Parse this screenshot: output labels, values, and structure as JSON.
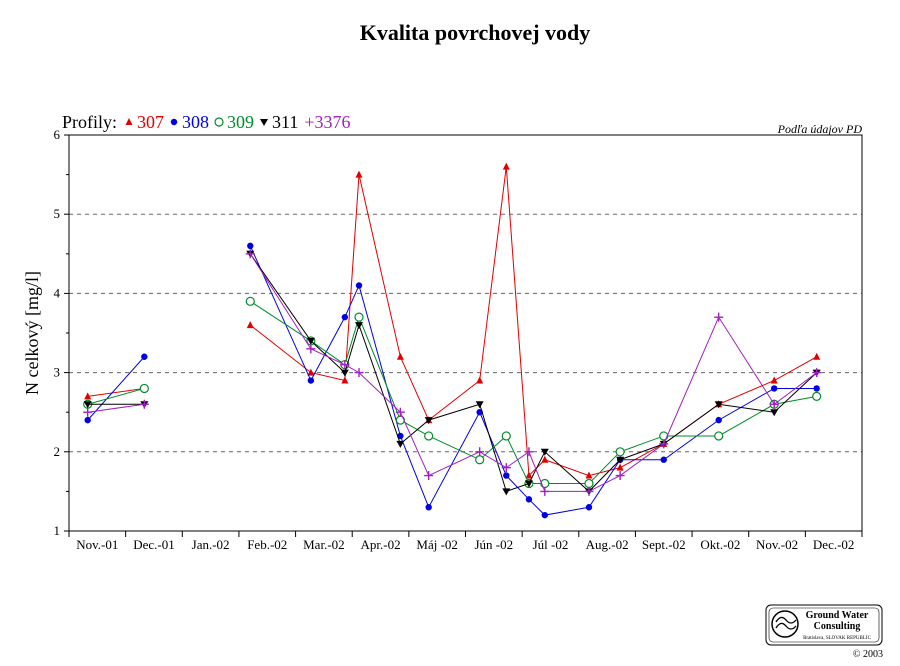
{
  "chart_data": {
    "type": "line",
    "title": "Kvalita povrchovej vody",
    "ylabel": "N celkový [mg/l]",
    "xlabel": "",
    "note": "Podľa údajov PD",
    "legend_prefix": "Profily:",
    "legend_position": "top-left",
    "ylim": [
      1,
      6
    ],
    "yticks": [
      1,
      2,
      3,
      4,
      5,
      6
    ],
    "grid": "horizontal-dashed",
    "categories": [
      "Nov.-01",
      "Dec.-01",
      "Jan.-02",
      "Feb.-02",
      "Mar.-02",
      "Apr.-02",
      "Máj -02",
      "Jún -02",
      "Júl -02",
      "Aug.-02",
      "Sept.-02",
      "Okt.-02",
      "Nov.-02",
      "Dec.-02"
    ],
    "series": [
      {
        "name": "307",
        "color": "#e00000",
        "marker": "triangle-up",
        "points": [
          [
            0.33,
            2.7
          ],
          [
            1.33,
            2.8
          ],
          [
            3.2,
            3.6
          ],
          [
            4.27,
            3.0
          ],
          [
            4.87,
            2.9
          ],
          [
            5.12,
            5.5
          ],
          [
            5.85,
            3.2
          ],
          [
            6.35,
            2.4
          ],
          [
            7.25,
            2.9
          ],
          [
            7.72,
            5.6
          ],
          [
            8.12,
            1.7
          ],
          [
            8.4,
            1.9
          ],
          [
            9.18,
            1.7
          ],
          [
            9.73,
            1.8
          ],
          [
            10.5,
            2.1
          ],
          [
            11.47,
            2.6
          ],
          [
            12.45,
            2.9
          ],
          [
            13.2,
            3.2
          ]
        ]
      },
      {
        "name": "308",
        "color": "#0000e0",
        "marker": "circle",
        "points": [
          [
            0.33,
            2.4
          ],
          [
            1.33,
            3.2
          ],
          [
            3.2,
            4.6
          ],
          [
            4.27,
            2.9
          ],
          [
            4.87,
            3.7
          ],
          [
            5.12,
            4.1
          ],
          [
            5.85,
            2.2
          ],
          [
            6.35,
            1.3
          ],
          [
            7.25,
            2.5
          ],
          [
            7.72,
            1.7
          ],
          [
            8.12,
            1.4
          ],
          [
            8.4,
            1.2
          ],
          [
            9.18,
            1.3
          ],
          [
            9.73,
            1.9
          ],
          [
            10.5,
            1.9
          ],
          [
            11.47,
            2.4
          ],
          [
            12.45,
            2.8
          ],
          [
            13.2,
            2.8
          ]
        ]
      },
      {
        "name": "309",
        "color": "#008c2a",
        "marker": "circle-open",
        "points": [
          [
            0.33,
            2.6
          ],
          [
            1.33,
            2.8
          ],
          [
            3.2,
            3.9
          ],
          [
            4.27,
            3.4
          ],
          [
            4.87,
            3.1
          ],
          [
            5.12,
            3.7
          ],
          [
            5.85,
            2.4
          ],
          [
            6.35,
            2.2
          ],
          [
            7.25,
            1.9
          ],
          [
            7.72,
            2.2
          ],
          [
            8.12,
            1.6
          ],
          [
            8.4,
            1.6
          ],
          [
            9.18,
            1.6
          ],
          [
            9.73,
            2.0
          ],
          [
            10.5,
            2.2
          ],
          [
            11.47,
            2.2
          ],
          [
            12.45,
            2.6
          ],
          [
            13.2,
            2.7
          ]
        ]
      },
      {
        "name": "311",
        "color": "#000000",
        "marker": "triangle-down",
        "points": [
          [
            0.33,
            2.6
          ],
          [
            1.33,
            2.6
          ],
          [
            3.2,
            4.5
          ],
          [
            4.27,
            3.4
          ],
          [
            4.87,
            3.0
          ],
          [
            5.12,
            3.6
          ],
          [
            5.85,
            2.1
          ],
          [
            6.35,
            2.4
          ],
          [
            7.25,
            2.6
          ],
          [
            7.72,
            1.5
          ],
          [
            8.12,
            1.6
          ],
          [
            8.4,
            2.0
          ],
          [
            9.18,
            1.5
          ],
          [
            9.73,
            1.9
          ],
          [
            10.5,
            2.1
          ],
          [
            11.47,
            2.6
          ],
          [
            12.45,
            2.5
          ],
          [
            13.2,
            3.0
          ]
        ]
      },
      {
        "name": "+3376",
        "color": "#a020c0",
        "marker": "plus",
        "points": [
          [
            0.33,
            2.5
          ],
          [
            1.33,
            2.6
          ],
          [
            3.2,
            4.5
          ],
          [
            4.27,
            3.3
          ],
          [
            4.87,
            3.1
          ],
          [
            5.12,
            3.0
          ],
          [
            5.85,
            2.5
          ],
          [
            6.35,
            1.7
          ],
          [
            7.25,
            2.0
          ],
          [
            7.72,
            1.8
          ],
          [
            8.12,
            2.0
          ],
          [
            8.4,
            1.5
          ],
          [
            9.18,
            1.5
          ],
          [
            9.73,
            1.7
          ],
          [
            10.5,
            2.1
          ],
          [
            11.47,
            3.7
          ],
          [
            12.45,
            2.6
          ],
          [
            13.2,
            3.0
          ]
        ]
      }
    ]
  },
  "logo": {
    "line1": "Ground Water",
    "line2": "Consulting",
    "line3": "Bratislava, SLOVAK REPUBLIC"
  },
  "copyright": "© 2003"
}
